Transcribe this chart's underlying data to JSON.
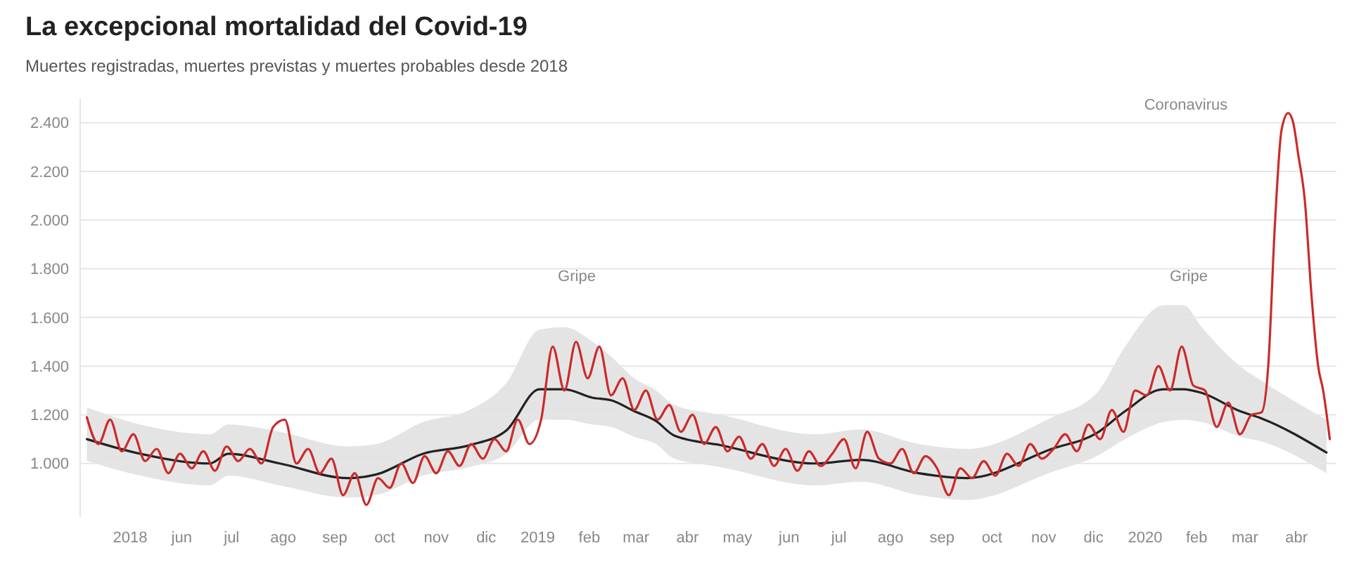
{
  "chart_data": {
    "type": "line",
    "title": "La excepcional mortalidad del Covid-19",
    "subtitle": "Muertes registradas, muertes previstas y muertes probables desde 2018",
    "xlim": [
      "2018-04-01",
      "2020-04-25"
    ],
    "xticks": [
      {
        "value": "2018-05-01",
        "label": "2018"
      },
      {
        "value": "2018-06-01",
        "label": "jun"
      },
      {
        "value": "2018-07-01",
        "label": "jul"
      },
      {
        "value": "2018-08-01",
        "label": "ago"
      },
      {
        "value": "2018-09-01",
        "label": "sep"
      },
      {
        "value": "2018-10-01",
        "label": "oct"
      },
      {
        "value": "2018-11-01",
        "label": "nov"
      },
      {
        "value": "2018-12-01",
        "label": "dic"
      },
      {
        "value": "2019-01-01",
        "label": "2019"
      },
      {
        "value": "2019-02-01",
        "label": "feb"
      },
      {
        "value": "2019-03-01",
        "label": "mar"
      },
      {
        "value": "2019-04-01",
        "label": "abr"
      },
      {
        "value": "2019-05-01",
        "label": "may"
      },
      {
        "value": "2019-06-01",
        "label": "jun"
      },
      {
        "value": "2019-07-01",
        "label": "jul"
      },
      {
        "value": "2019-08-01",
        "label": "ago"
      },
      {
        "value": "2019-09-01",
        "label": "sep"
      },
      {
        "value": "2019-10-01",
        "label": "oct"
      },
      {
        "value": "2019-11-01",
        "label": "nov"
      },
      {
        "value": "2019-12-01",
        "label": "dic"
      },
      {
        "value": "2020-01-01",
        "label": "2020"
      },
      {
        "value": "2020-02-01",
        "label": "feb"
      },
      {
        "value": "2020-03-01",
        "label": "mar"
      },
      {
        "value": "2020-04-01",
        "label": "abr"
      }
    ],
    "ylim": [
      780,
      2500
    ],
    "yticks": [
      {
        "value": 1000,
        "label": "1.000"
      },
      {
        "value": 1200,
        "label": "1.200"
      },
      {
        "value": 1400,
        "label": "1.400"
      },
      {
        "value": 1600,
        "label": "1.600"
      },
      {
        "value": 1800,
        "label": "1.800"
      },
      {
        "value": 2000,
        "label": "2.000"
      },
      {
        "value": 2200,
        "label": "2.200"
      },
      {
        "value": 2400,
        "label": "2.400"
      }
    ],
    "grid": "y",
    "series": [
      {
        "color": "#222222",
        "x": [
          "2018-04-05",
          "2018-05-07",
          "2018-06-18",
          "2018-06-29",
          "2018-07-30",
          "2018-09-09",
          "2018-09-26",
          "2018-10-24",
          "2018-11-21",
          "2018-12-13",
          "2019-01-02",
          "2019-01-17",
          "2019-02-03",
          "2019-02-14",
          "2019-02-28",
          "2019-03-13",
          "2019-03-24",
          "2019-04-21",
          "2019-06-17",
          "2019-07-14",
          "2019-08-18",
          "2019-09-16",
          "2019-11-06",
          "2019-12-03",
          "2019-12-20",
          "2020-01-12",
          "2020-01-24",
          "2020-02-04",
          "2020-02-27",
          "2020-03-11",
          "2020-04-19"
        ],
        "values": [
          1100,
          1040,
          1000,
          1040,
          1000,
          940,
          955,
          1040,
          1075,
          1135,
          1305,
          1305,
          1270,
          1260,
          1215,
          1175,
          1115,
          1075,
          1000,
          1015,
          960,
          940,
          1060,
          1125,
          1215,
          1305,
          1305,
          1290,
          1215,
          1185,
          1045
        ],
        "upper": [
          1230,
          1160,
          1120,
          1160,
          1130,
          1070,
          1080,
          1170,
          1220,
          1330,
          1550,
          1560,
          1500,
          1440,
          1350,
          1300,
          1240,
          1200,
          1120,
          1140,
          1080,
          1060,
          1190,
          1290,
          1480,
          1650,
          1650,
          1560,
          1400,
          1340,
          1180
        ],
        "lower": [
          1010,
          950,
          910,
          950,
          910,
          860,
          870,
          950,
          985,
          1040,
          1180,
          1180,
          1160,
          1150,
          1110,
          1080,
          1020,
          985,
          910,
          925,
          870,
          850,
          965,
          1030,
          1100,
          1170,
          1180,
          1170,
          1110,
          1090,
          960
        ]
      },
      {
        "color": "#cc2a2a",
        "x": [
          "2018-04-05",
          "2018-04-12",
          "2018-04-19",
          "2018-04-26",
          "2018-05-03",
          "2018-05-10",
          "2018-05-17",
          "2018-05-24",
          "2018-05-31",
          "2018-06-07",
          "2018-06-14",
          "2018-06-21",
          "2018-06-28",
          "2018-07-05",
          "2018-07-12",
          "2018-07-19",
          "2018-07-26",
          "2018-08-02",
          "2018-08-09",
          "2018-08-16",
          "2018-08-23",
          "2018-08-30",
          "2018-09-06",
          "2018-09-13",
          "2018-09-20",
          "2018-09-27",
          "2018-10-04",
          "2018-10-11",
          "2018-10-18",
          "2018-10-25",
          "2018-11-01",
          "2018-11-08",
          "2018-11-15",
          "2018-11-22",
          "2018-11-29",
          "2018-12-06",
          "2018-12-13",
          "2018-12-20",
          "2018-12-27",
          "2019-01-03",
          "2019-01-10",
          "2019-01-17",
          "2019-01-24",
          "2019-01-31",
          "2019-02-07",
          "2019-02-14",
          "2019-02-21",
          "2019-02-28",
          "2019-03-07",
          "2019-03-14",
          "2019-03-21",
          "2019-03-28",
          "2019-04-04",
          "2019-04-11",
          "2019-04-18",
          "2019-04-25",
          "2019-05-02",
          "2019-05-09",
          "2019-05-16",
          "2019-05-23",
          "2019-05-30",
          "2019-06-06",
          "2019-06-13",
          "2019-06-20",
          "2019-06-27",
          "2019-07-04",
          "2019-07-11",
          "2019-07-18",
          "2019-07-25",
          "2019-08-01",
          "2019-08-08",
          "2019-08-15",
          "2019-08-22",
          "2019-08-29",
          "2019-09-05",
          "2019-09-12",
          "2019-09-19",
          "2019-09-26",
          "2019-10-03",
          "2019-10-10",
          "2019-10-17",
          "2019-10-24",
          "2019-10-31",
          "2019-11-07",
          "2019-11-14",
          "2019-11-21",
          "2019-11-28",
          "2019-12-05",
          "2019-12-12",
          "2019-12-19",
          "2019-12-26",
          "2020-01-02",
          "2020-01-09",
          "2020-01-16",
          "2020-01-23",
          "2020-01-30",
          "2020-02-06",
          "2020-02-13",
          "2020-02-20",
          "2020-02-27",
          "2020-03-05",
          "2020-03-11",
          "2020-03-15",
          "2020-03-19",
          "2020-03-23",
          "2020-03-27",
          "2020-03-30",
          "2020-04-02",
          "2020-04-06",
          "2020-04-10",
          "2020-04-14",
          "2020-04-17",
          "2020-04-21"
        ],
        "values": [
          1190,
          1080,
          1180,
          1050,
          1120,
          1010,
          1060,
          960,
          1040,
          980,
          1050,
          970,
          1070,
          1010,
          1060,
          1000,
          1150,
          1180,
          1000,
          1060,
          960,
          1020,
          870,
          960,
          830,
          940,
          900,
          1000,
          920,
          1030,
          960,
          1050,
          990,
          1080,
          1020,
          1100,
          1050,
          1180,
          1080,
          1180,
          1480,
          1300,
          1500,
          1350,
          1480,
          1280,
          1350,
          1220,
          1300,
          1180,
          1240,
          1130,
          1200,
          1080,
          1150,
          1050,
          1110,
          1020,
          1080,
          990,
          1060,
          970,
          1050,
          990,
          1040,
          1100,
          980,
          1130,
          1020,
          1000,
          1060,
          960,
          1030,
          980,
          870,
          980,
          940,
          1010,
          950,
          1040,
          990,
          1080,
          1020,
          1060,
          1120,
          1050,
          1160,
          1100,
          1220,
          1130,
          1300,
          1280,
          1400,
          1300,
          1480,
          1320,
          1300,
          1150,
          1250,
          1120,
          1200,
          1210,
          1400,
          1980,
          2370,
          2440,
          2400,
          2270,
          2080,
          1690,
          1400,
          1300,
          1100
        ]
      }
    ],
    "annotations": [
      "Coronavirus",
      "Gripe",
      "Gripe"
    ]
  }
}
